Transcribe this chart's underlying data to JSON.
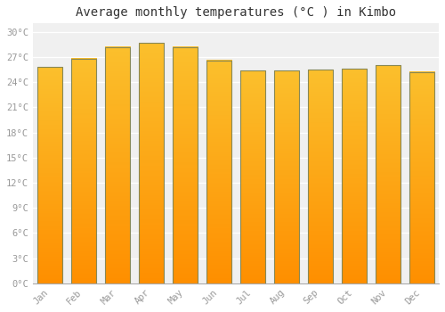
{
  "months": [
    "Jan",
    "Feb",
    "Mar",
    "Apr",
    "May",
    "Jun",
    "Jul",
    "Aug",
    "Sep",
    "Oct",
    "Nov",
    "Dec"
  ],
  "temperatures": [
    25.8,
    26.8,
    28.2,
    28.7,
    28.2,
    26.6,
    25.4,
    25.4,
    25.5,
    25.6,
    26.0,
    25.2
  ],
  "bar_color_top": "#FBC02D",
  "bar_color_bottom": "#FF8F00",
  "bar_edge_color": "#888855",
  "background_color": "#FFFFFF",
  "plot_bg_color": "#F0F0F0",
  "grid_color": "#FFFFFF",
  "title": "Average monthly temperatures (°C ) in Kimbo",
  "title_fontsize": 10,
  "ytick_labels": [
    "0°C",
    "3°C",
    "6°C",
    "9°C",
    "12°C",
    "15°C",
    "18°C",
    "21°C",
    "24°C",
    "27°C",
    "30°C"
  ],
  "ytick_values": [
    0,
    3,
    6,
    9,
    12,
    15,
    18,
    21,
    24,
    27,
    30
  ],
  "ylim": [
    0,
    31
  ],
  "tick_color": "#999999",
  "tick_fontsize": 7.5,
  "title_font": "monospace",
  "bar_width": 0.75
}
